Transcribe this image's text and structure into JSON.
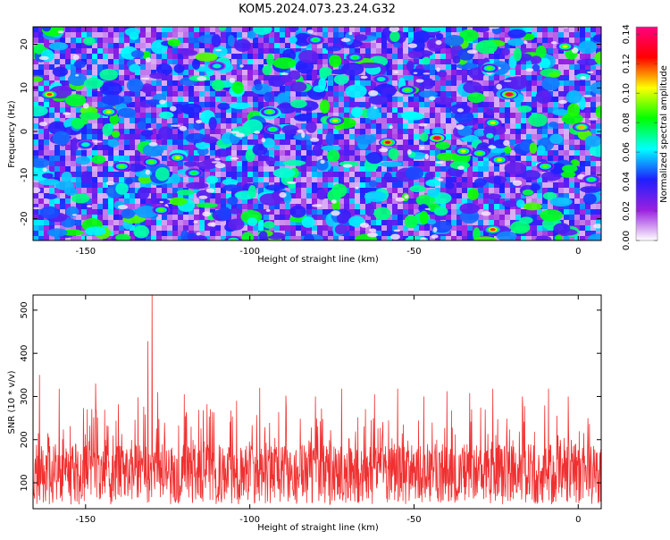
{
  "title": "KOM5.2024.073.23.24.G32",
  "chart_data": [
    {
      "type": "heatmap",
      "xlabel": "Height of straight line (km)",
      "ylabel": "Frequency (Hz)",
      "xlim": [
        -166,
        7
      ],
      "ylim": [
        -25,
        24
      ],
      "xticks": [
        -150,
        -100,
        -50,
        0
      ],
      "yticks": [
        -20,
        -10,
        0,
        10,
        20
      ],
      "colorbar": {
        "label": "Normalized spectral amplitude",
        "range": [
          0.0,
          0.145
        ],
        "ticks": [
          "0.00",
          "0.02",
          "0.04",
          "0.06",
          "0.08",
          "0.10",
          "0.12",
          "0.14"
        ],
        "colors": [
          "#ffffff",
          "#9a20e0",
          "#1f1fff",
          "#00ffff",
          "#00ff00",
          "#ffff00",
          "#ff0000",
          "#ff0080"
        ]
      },
      "hotspots": [
        {
          "x": -161,
          "y": 8.5,
          "v": 0.12
        },
        {
          "x": -143,
          "y": 4.5,
          "v": 0.1
        },
        {
          "x": -139,
          "y": -8,
          "v": 0.09
        },
        {
          "x": -130,
          "y": -7,
          "v": 0.09
        },
        {
          "x": -122,
          "y": -6,
          "v": 0.1
        },
        {
          "x": -127,
          "y": -18,
          "v": 0.09
        },
        {
          "x": -117,
          "y": -9.5,
          "v": 0.08
        },
        {
          "x": -105,
          "y": -25,
          "v": 0.09
        },
        {
          "x": -94,
          "y": 4.5,
          "v": 0.09
        },
        {
          "x": -93,
          "y": 0.5,
          "v": 0.08
        },
        {
          "x": -74,
          "y": 2.5,
          "v": 0.1
        },
        {
          "x": -68,
          "y": 17,
          "v": 0.08
        },
        {
          "x": -58,
          "y": -2.5,
          "v": 0.13
        },
        {
          "x": -52,
          "y": 9.5,
          "v": 0.09
        },
        {
          "x": -43,
          "y": -1.5,
          "v": 0.14
        },
        {
          "x": -35,
          "y": -4.5,
          "v": 0.1
        },
        {
          "x": -30,
          "y": -5,
          "v": 0.09
        },
        {
          "x": -27,
          "y": 14.5,
          "v": 0.09
        },
        {
          "x": -26,
          "y": -22.5,
          "v": 0.12
        },
        {
          "x": -24,
          "y": -6.5,
          "v": 0.1
        },
        {
          "x": -21,
          "y": 8.5,
          "v": 0.14
        },
        {
          "x": -26,
          "y": 2,
          "v": 0.1
        },
        {
          "x": -10,
          "y": -8,
          "v": 0.09
        },
        {
          "x": -4,
          "y": 19.5,
          "v": 0.1
        },
        {
          "x": 1,
          "y": 1,
          "v": 0.11
        },
        {
          "x": 4,
          "y": -11,
          "v": 0.08
        },
        {
          "x": -110,
          "y": 15,
          "v": 0.07
        },
        {
          "x": -80,
          "y": 21,
          "v": 0.08
        },
        {
          "x": -150,
          "y": -3,
          "v": 0.07
        },
        {
          "x": -60,
          "y": 12,
          "v": 0.07
        }
      ]
    },
    {
      "type": "line",
      "xlabel": "Height of straight line (km)",
      "ylabel": "SNR (10 * v/v)",
      "xlim": [
        -166,
        7
      ],
      "ylim": [
        40,
        535
      ],
      "xticks": [
        -150,
        -100,
        -50,
        0
      ],
      "yticks": [
        100,
        200,
        300,
        400,
        500
      ],
      "color": "#f03030",
      "baseline_range": [
        50,
        190
      ],
      "peaks": [
        {
          "x": -164,
          "y": 350
        },
        {
          "x": -158,
          "y": 318
        },
        {
          "x": -147,
          "y": 330
        },
        {
          "x": -140,
          "y": 282
        },
        {
          "x": -134,
          "y": 298
        },
        {
          "x": -131,
          "y": 428
        },
        {
          "x": -129.8,
          "y": 540
        },
        {
          "x": -128,
          "y": 310
        },
        {
          "x": -120,
          "y": 305
        },
        {
          "x": -113,
          "y": 282
        },
        {
          "x": -104,
          "y": 290
        },
        {
          "x": -97,
          "y": 320
        },
        {
          "x": -89,
          "y": 302
        },
        {
          "x": -80,
          "y": 300
        },
        {
          "x": -72,
          "y": 318
        },
        {
          "x": -62,
          "y": 305
        },
        {
          "x": -55,
          "y": 318
        },
        {
          "x": -47,
          "y": 300
        },
        {
          "x": -40,
          "y": 312
        },
        {
          "x": -33,
          "y": 308
        },
        {
          "x": -26,
          "y": 318
        },
        {
          "x": -17,
          "y": 300
        },
        {
          "x": -9,
          "y": 318
        },
        {
          "x": -3,
          "y": 300
        },
        {
          "x": 3,
          "y": 250
        }
      ]
    }
  ]
}
